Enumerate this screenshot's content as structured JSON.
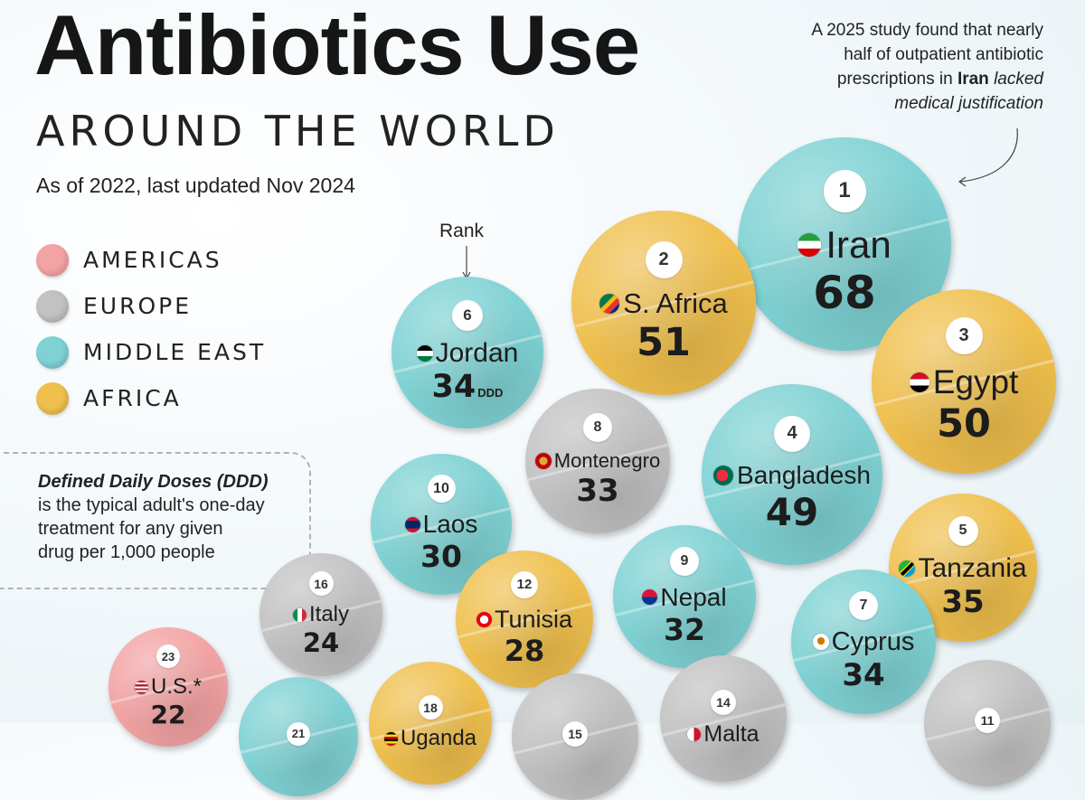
{
  "header": {
    "title": "Antibiotics Use",
    "subtitle": "AROUND THE WORLD",
    "date_note": "As of 2022, last updated Nov 2024"
  },
  "legend": [
    {
      "label": "AMERICAS",
      "color": "#f3a3a3"
    },
    {
      "label": "EUROPE",
      "color": "#c2c2c2"
    },
    {
      "label": "MIDDLE EAST",
      "color": "#7fd2d4"
    },
    {
      "label": "AFRICA",
      "color": "#f0c04e"
    }
  ],
  "ddd_note": {
    "heading": "Defined Daily Doses (DDD)",
    "line1": "is the typical adult's one-day",
    "line2": "treatment for any given",
    "line3": "drug per 1,000 people"
  },
  "annotation": {
    "line1": "A 2025 study found that nearly",
    "line2": "half of outpatient antibiotic",
    "line3_pre": "prescriptions in ",
    "line3_bold": "Iran",
    "line3_italic": "lacked",
    "line4": "medical justification"
  },
  "rank_label": "Rank",
  "colors": {
    "americas": "#f3a3a3",
    "europe": "#c2c2c2",
    "middle_east": "#7fd2d4",
    "africa": "#f0c04e"
  },
  "chart_data": {
    "type": "bubble",
    "title": "Antibiotics Use",
    "unit": "DDD",
    "points": [
      {
        "rank": 1,
        "country": "Iran",
        "value": 68,
        "region": "middle_east",
        "flag_icon": "iran-flag-icon"
      },
      {
        "rank": 2,
        "country": "S. Africa",
        "value": 51,
        "region": "africa",
        "flag_icon": "south-africa-flag-icon"
      },
      {
        "rank": 3,
        "country": "Egypt",
        "value": 50,
        "region": "africa",
        "flag_icon": "egypt-flag-icon"
      },
      {
        "rank": 4,
        "country": "Bangladesh",
        "value": 49,
        "region": "middle_east",
        "flag_icon": "bangladesh-flag-icon"
      },
      {
        "rank": 5,
        "country": "Tanzania",
        "value": 35,
        "region": "africa",
        "flag_icon": "tanzania-flag-icon"
      },
      {
        "rank": 6,
        "country": "Jordan",
        "value": 34,
        "region": "middle_east",
        "flag_icon": "jordan-flag-icon"
      },
      {
        "rank": 7,
        "country": "Cyprus",
        "value": 34,
        "region": "middle_east",
        "flag_icon": "cyprus-flag-icon"
      },
      {
        "rank": 8,
        "country": "Montenegro",
        "value": 33,
        "region": "europe",
        "flag_icon": "montenegro-flag-icon"
      },
      {
        "rank": 9,
        "country": "Nepal",
        "value": 32,
        "region": "middle_east",
        "flag_icon": "nepal-flag-icon"
      },
      {
        "rank": 10,
        "country": "Laos",
        "value": 30,
        "region": "middle_east",
        "flag_icon": "laos-flag-icon"
      },
      {
        "rank": 11,
        "country": "",
        "value": null,
        "region": "europe",
        "flag_icon": ""
      },
      {
        "rank": 12,
        "country": "Tunisia",
        "value": 28,
        "region": "africa",
        "flag_icon": "tunisia-flag-icon"
      },
      {
        "rank": 14,
        "country": "Malta",
        "value": null,
        "region": "europe",
        "flag_icon": "malta-flag-icon"
      },
      {
        "rank": 15,
        "country": "",
        "value": null,
        "region": "europe",
        "flag_icon": ""
      },
      {
        "rank": 16,
        "country": "Italy",
        "value": 24,
        "region": "europe",
        "flag_icon": "italy-flag-icon"
      },
      {
        "rank": 18,
        "country": "Uganda",
        "value": null,
        "region": "africa",
        "flag_icon": "uganda-flag-icon"
      },
      {
        "rank": 21,
        "country": "",
        "value": null,
        "region": "middle_east",
        "flag_icon": ""
      },
      {
        "rank": 23,
        "country": "U.S.*",
        "value": 22,
        "region": "americas",
        "flag_icon": "usa-flag-icon"
      }
    ]
  }
}
